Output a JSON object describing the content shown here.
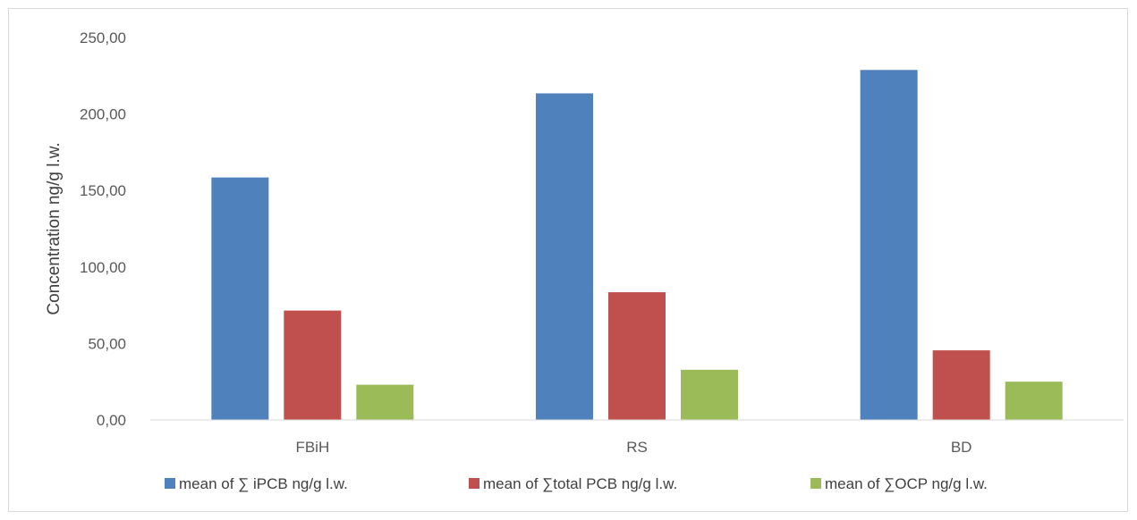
{
  "chart_data": {
    "type": "bar",
    "categories": [
      "FBiH",
      "RS",
      "BD"
    ],
    "series": [
      {
        "name": "mean of ∑ iPCB ng/g l.w.",
        "values": [
          158.5,
          213.5,
          228.8
        ],
        "color": "#4f81bd"
      },
      {
        "name": "mean of ∑total PCB  ng/g l.w.",
        "values": [
          71.5,
          83.5,
          45.5
        ],
        "color": "#c0504d"
      },
      {
        "name": "mean of ∑OCP ng/g l.w.",
        "values": [
          23.0,
          32.8,
          25.0
        ],
        "color": "#9bbb59"
      }
    ],
    "ylabel": "Concentration ng/g l.w.",
    "xlabel": "",
    "ylim": [
      0,
      250
    ],
    "yticks": [
      "0,00",
      "50,00",
      "100,00",
      "150,00",
      "200,00",
      "250,00"
    ],
    "ytick_values": [
      0,
      50,
      100,
      150,
      200,
      250
    ],
    "grid": false,
    "legend_position": "bottom"
  }
}
